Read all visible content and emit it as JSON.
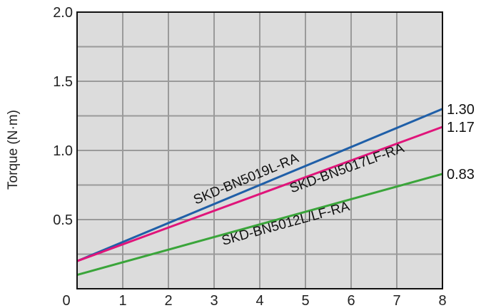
{
  "chart_data": {
    "type": "line",
    "title": "",
    "xlabel": "",
    "ylabel": "Torque (N·m)",
    "xlim": [
      0,
      8
    ],
    "ylim": [
      0,
      2.0
    ],
    "x_ticks": [
      "0",
      "1",
      "2",
      "3",
      "4",
      "5",
      "6",
      "7",
      "8"
    ],
    "y_ticks": [
      "0.5",
      "1.0",
      "1.5",
      "2.0"
    ],
    "grid": true,
    "background": "#dcdcdc",
    "grid_color": "#9a9a9a",
    "series": [
      {
        "name": "SKD-BN5019L-RA",
        "x": [
          0,
          8
        ],
        "y": [
          0.2,
          1.3
        ],
        "color": "#1f5fa8",
        "end_label": "1.30"
      },
      {
        "name": "SKD-BN5017LF-RA",
        "x": [
          0,
          8
        ],
        "y": [
          0.2,
          1.17
        ],
        "color": "#e0147a",
        "end_label": "1.17"
      },
      {
        "name": "SKD-BN5012L/LF-RA",
        "x": [
          0,
          8
        ],
        "y": [
          0.1,
          0.83
        ],
        "color": "#3aa53a",
        "end_label": "0.83"
      }
    ]
  }
}
